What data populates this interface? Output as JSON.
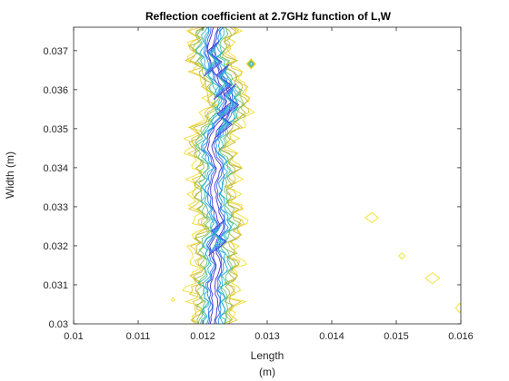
{
  "chart_data": {
    "type": "contour",
    "title": "Reflection coefficient at 2.7GHz function of L,W",
    "xlabel": "Length",
    "xlabel_unit": "(m)",
    "ylabel": "Width (m)",
    "xlim": [
      0.01,
      0.016
    ],
    "ylim": [
      0.03,
      0.0376
    ],
    "x_ticks": [
      0.01,
      0.011,
      0.012,
      0.013,
      0.014,
      0.015,
      0.016
    ],
    "x_tick_labels": [
      "0.01",
      "0.011",
      "0.012",
      "0.013",
      "0.014",
      "0.015",
      "0.016"
    ],
    "y_ticks": [
      0.03,
      0.031,
      0.032,
      0.033,
      0.034,
      0.035,
      0.036,
      0.037
    ],
    "y_tick_labels": [
      "0.03",
      "0.031",
      "0.032",
      "0.033",
      "0.034",
      "0.035",
      "0.036",
      "0.037"
    ],
    "grid": false,
    "colormap": "parula",
    "ridge_center": [
      [
        0.03,
        0.01215
      ],
      [
        0.0305,
        0.0122
      ],
      [
        0.031,
        0.01215
      ],
      [
        0.0315,
        0.01225
      ],
      [
        0.032,
        0.01215
      ],
      [
        0.0325,
        0.0123
      ],
      [
        0.033,
        0.0122
      ],
      [
        0.0335,
        0.01215
      ],
      [
        0.034,
        0.01225
      ],
      [
        0.0345,
        0.0121
      ],
      [
        0.035,
        0.0122
      ],
      [
        0.0353,
        0.01235
      ],
      [
        0.0357,
        0.0124
      ],
      [
        0.036,
        0.01235
      ],
      [
        0.0365,
        0.0122
      ],
      [
        0.037,
        0.0121
      ],
      [
        0.0376,
        0.0122
      ]
    ],
    "side_features": [
      {
        "x": 0.01462,
        "y": 0.03272,
        "rx": 0.0001,
        "ry": 0.00013
      },
      {
        "x": 0.01509,
        "y": 0.03174,
        "rx": 5e-05,
        "ry": 8e-05
      },
      {
        "x": 0.01556,
        "y": 0.03117,
        "rx": 0.00011,
        "ry": 0.00014
      },
      {
        "x": 0.01598,
        "y": 0.03041,
        "rx": 6e-05,
        "ry": 0.00012
      },
      {
        "x": 0.01275,
        "y": 0.03666,
        "rx": 7e-05,
        "ry": 0.00013
      },
      {
        "x": 0.01154,
        "y": 0.03062,
        "rx": 3e-05,
        "ry": 5e-05
      }
    ]
  },
  "colors": {
    "level_colors": [
      "#f2e12a",
      "#e6c53a",
      "#c5bd3f",
      "#a3bd51",
      "#6fc47c",
      "#3fbfaa",
      "#27aedb",
      "#2c8fee",
      "#3b6be8",
      "#4534c8"
    ],
    "axis_color": "#262626",
    "background": "#ffffff"
  }
}
